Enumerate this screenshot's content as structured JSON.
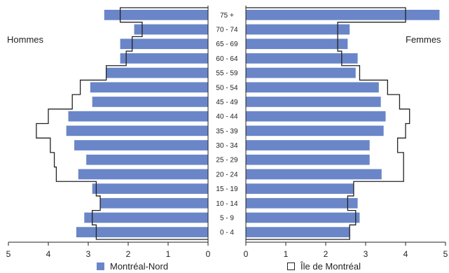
{
  "chart_data": {
    "type": "population-pyramid",
    "categories": [
      "0 - 4",
      "5 - 9",
      "10 - 14",
      "15 - 19",
      "20 - 24",
      "25 - 29",
      "30 - 34",
      "35 - 39",
      "40 - 44",
      "45 - 49",
      "50 - 54",
      "55 - 59",
      "60 - 64",
      "65 - 69",
      "70 - 74",
      "75 +"
    ],
    "left_label": "Hommes",
    "right_label": "Femmes",
    "series": [
      {
        "name": "Montréal-Nord",
        "style": "bars",
        "men": [
          3.3,
          3.1,
          2.7,
          2.9,
          3.25,
          3.05,
          3.35,
          3.55,
          3.5,
          2.9,
          2.95,
          2.55,
          2.2,
          2.2,
          1.85,
          2.6
        ],
        "women": [
          2.6,
          2.85,
          2.8,
          2.7,
          3.4,
          3.1,
          3.1,
          3.45,
          3.5,
          3.38,
          3.33,
          2.75,
          2.8,
          2.55,
          2.6,
          4.85
        ]
      },
      {
        "name": "Île de Montréal",
        "style": "outline",
        "men": [
          2.8,
          2.9,
          2.7,
          2.8,
          3.8,
          3.85,
          3.95,
          4.3,
          4.0,
          3.4,
          3.2,
          2.55,
          2.05,
          1.9,
          1.65,
          2.2
        ],
        "women": [
          2.6,
          2.75,
          2.55,
          2.7,
          3.95,
          3.95,
          3.8,
          4.0,
          4.1,
          3.85,
          3.55,
          2.85,
          2.4,
          2.3,
          2.3,
          4.0
        ]
      }
    ],
    "x_ticks": [
      "5",
      "4",
      "3",
      "2",
      "1",
      "0",
      "0",
      "1",
      "2",
      "3",
      "4",
      "5"
    ],
    "xlim": [
      0,
      5
    ],
    "colors": {
      "bars": "#6a86c8",
      "outline": "#222222"
    },
    "legend_position": "bottom",
    "grid": false
  }
}
